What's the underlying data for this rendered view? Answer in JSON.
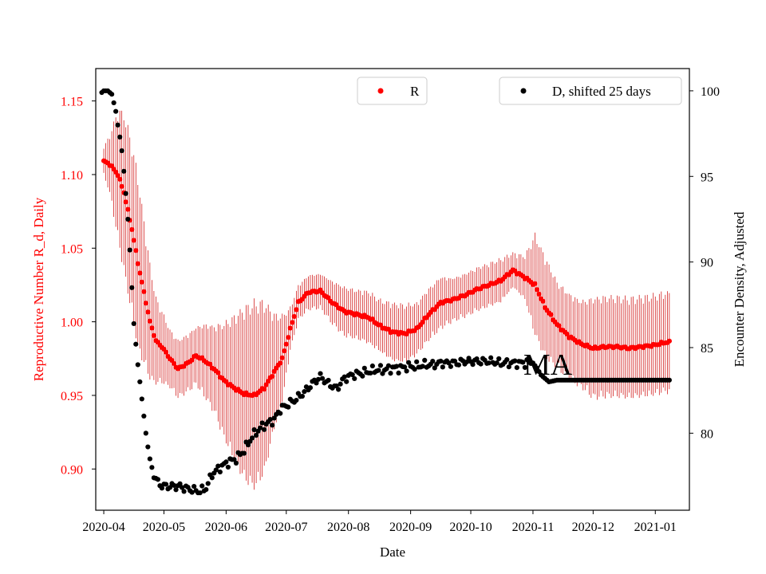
{
  "chart_data": {
    "type": "scatter",
    "title": "",
    "xlabel": "Date",
    "ylabel_left": "Reproductive Number R_d, Daily",
    "ylabel_right": "Encounter Density, Adjusted",
    "annotation": "MA",
    "x_ticks": [
      "2020-04",
      "2020-05",
      "2020-06",
      "2020-07",
      "2020-08",
      "2020-09",
      "2020-10",
      "2020-11",
      "2020-12",
      "2021-01"
    ],
    "x_range_days": [
      -4,
      292
    ],
    "ylim_left": [
      0.872,
      1.172
    ],
    "yticks_left": [
      0.9,
      0.95,
      1.0,
      1.05,
      1.1,
      1.15
    ],
    "ylim_right": [
      75.5,
      101.3
    ],
    "yticks_right": [
      80,
      85,
      90,
      95,
      100
    ],
    "legend": {
      "r_label": "R",
      "d_label": "D, shifted 25 days"
    },
    "colors": {
      "r_series": "#ff0000",
      "r_errorbar": "#cc0000",
      "d_series": "#000000",
      "left_axis_text": "#ff0000"
    },
    "series": [
      {
        "name": "R",
        "axis": "left",
        "description": "daily values with error bars, keyframes as [day, value, halfwidth]",
        "keyframes": [
          [
            0,
            1.109,
            0.01
          ],
          [
            3,
            1.107,
            0.02
          ],
          [
            7,
            1.1,
            0.045
          ],
          [
            10,
            1.088,
            0.055
          ],
          [
            14,
            1.063,
            0.06
          ],
          [
            17,
            1.04,
            0.06
          ],
          [
            20,
            1.02,
            0.05
          ],
          [
            23,
            1.0,
            0.04
          ],
          [
            26,
            0.987,
            0.03
          ],
          [
            29,
            0.983,
            0.025
          ],
          [
            33,
            0.975,
            0.02
          ],
          [
            37,
            0.968,
            0.02
          ],
          [
            42,
            0.972,
            0.02
          ],
          [
            46,
            0.977,
            0.02
          ],
          [
            50,
            0.974,
            0.025
          ],
          [
            55,
            0.968,
            0.03
          ],
          [
            60,
            0.96,
            0.04
          ],
          [
            65,
            0.955,
            0.05
          ],
          [
            70,
            0.951,
            0.06
          ],
          [
            75,
            0.95,
            0.065
          ],
          [
            80,
            0.955,
            0.06
          ],
          [
            85,
            0.966,
            0.04
          ],
          [
            89,
            0.975,
            0.03
          ],
          [
            93,
            0.995,
            0.015
          ],
          [
            97,
            1.013,
            0.012
          ],
          [
            102,
            1.02,
            0.012
          ],
          [
            108,
            1.021,
            0.012
          ],
          [
            114,
            1.013,
            0.015
          ],
          [
            120,
            1.007,
            0.017
          ],
          [
            126,
            1.005,
            0.017
          ],
          [
            132,
            1.003,
            0.018
          ],
          [
            138,
            0.997,
            0.018
          ],
          [
            144,
            0.993,
            0.02
          ],
          [
            150,
            0.992,
            0.02
          ],
          [
            156,
            0.995,
            0.018
          ],
          [
            162,
            1.005,
            0.018
          ],
          [
            168,
            1.013,
            0.018
          ],
          [
            174,
            1.015,
            0.015
          ],
          [
            180,
            1.018,
            0.015
          ],
          [
            186,
            1.022,
            0.015
          ],
          [
            192,
            1.025,
            0.015
          ],
          [
            198,
            1.028,
            0.015
          ],
          [
            204,
            1.035,
            0.012
          ],
          [
            210,
            1.03,
            0.015
          ],
          [
            215,
            1.025,
            0.035
          ],
          [
            220,
            1.01,
            0.035
          ],
          [
            226,
            0.998,
            0.03
          ],
          [
            232,
            0.99,
            0.03
          ],
          [
            238,
            0.985,
            0.03
          ],
          [
            244,
            0.982,
            0.035
          ],
          [
            250,
            0.983,
            0.035
          ],
          [
            256,
            0.983,
            0.035
          ],
          [
            262,
            0.982,
            0.035
          ],
          [
            268,
            0.983,
            0.035
          ],
          [
            274,
            0.984,
            0.035
          ],
          [
            280,
            0.986,
            0.035
          ],
          [
            282,
            0.986,
            0.035
          ]
        ]
      },
      {
        "name": "D, shifted 25 days",
        "axis": "right",
        "description": "encounter density, keyframes as [day, value]",
        "keyframes": [
          [
            -1,
            99.9
          ],
          [
            0,
            100.0
          ],
          [
            2,
            100.0
          ],
          [
            4,
            99.8
          ],
          [
            5,
            99.3
          ],
          [
            6,
            98.8
          ],
          [
            7,
            98.0
          ],
          [
            8,
            97.3
          ],
          [
            9,
            96.5
          ],
          [
            10,
            95.3
          ],
          [
            11,
            94.0
          ],
          [
            12,
            92.5
          ],
          [
            13,
            90.7
          ],
          [
            14,
            88.5
          ],
          [
            15,
            86.4
          ],
          [
            16,
            85.2
          ],
          [
            17,
            84.0
          ],
          [
            18,
            83.0
          ],
          [
            19,
            82.0
          ],
          [
            20,
            81.0
          ],
          [
            21,
            80.0
          ],
          [
            22,
            79.2
          ],
          [
            23,
            78.5
          ],
          [
            24,
            78.0
          ],
          [
            25,
            77.6
          ],
          [
            26,
            77.3
          ],
          [
            28,
            77.0
          ],
          [
            30,
            76.9
          ],
          [
            32,
            76.9
          ],
          [
            34,
            76.9
          ],
          [
            36,
            76.9
          ],
          [
            38,
            76.9
          ],
          [
            40,
            76.8
          ],
          [
            44,
            76.7
          ],
          [
            48,
            76.6
          ],
          [
            51,
            76.8
          ],
          [
            54,
            77.6
          ],
          [
            58,
            78.0
          ],
          [
            62,
            78.3
          ],
          [
            66,
            78.5
          ],
          [
            70,
            79.0
          ],
          [
            74,
            79.8
          ],
          [
            78,
            80.3
          ],
          [
            82,
            80.6
          ],
          [
            85,
            80.8
          ],
          [
            88,
            81.4
          ],
          [
            92,
            81.7
          ],
          [
            96,
            82.0
          ],
          [
            100,
            82.4
          ],
          [
            104,
            82.9
          ],
          [
            108,
            83.3
          ],
          [
            112,
            82.9
          ],
          [
            116,
            82.6
          ],
          [
            120,
            83.2
          ],
          [
            124,
            83.4
          ],
          [
            128,
            83.5
          ],
          [
            132,
            83.6
          ],
          [
            136,
            83.7
          ],
          [
            140,
            83.7
          ],
          [
            144,
            83.8
          ],
          [
            148,
            83.8
          ],
          [
            152,
            83.9
          ],
          [
            156,
            83.9
          ],
          [
            160,
            84.0
          ],
          [
            164,
            84.0
          ],
          [
            168,
            84.1
          ],
          [
            172,
            84.1
          ],
          [
            176,
            84.1
          ],
          [
            180,
            84.2
          ],
          [
            186,
            84.2
          ],
          [
            192,
            84.2
          ],
          [
            198,
            84.1
          ],
          [
            204,
            84.1
          ],
          [
            210,
            84.1
          ],
          [
            214,
            84.1
          ],
          [
            216,
            83.8
          ],
          [
            218,
            83.4
          ],
          [
            220,
            83.2
          ],
          [
            222,
            83.0
          ],
          [
            226,
            83.1
          ],
          [
            230,
            83.1
          ],
          [
            240,
            83.1
          ],
          [
            260,
            83.1
          ],
          [
            282,
            83.1
          ]
        ]
      }
    ]
  }
}
